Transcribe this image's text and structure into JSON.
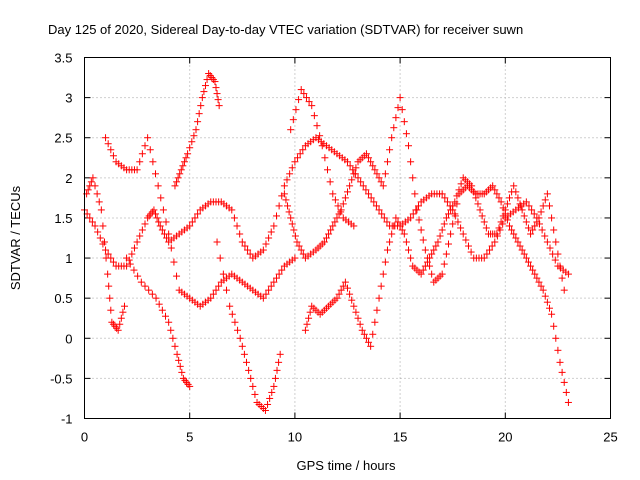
{
  "chart_data": {
    "type": "scatter",
    "title": "Day 125 of 2020, Sidereal Day-to-day VTEC variation (SDTVAR) for receiver suwn",
    "xlabel": "GPS time / hours",
    "ylabel": "SDTVAR / TECUs",
    "xlim": [
      0,
      25
    ],
    "ylim": [
      -1,
      3.5
    ],
    "x_ticks": [
      "0",
      "5",
      "10",
      "15",
      "20",
      "25"
    ],
    "y_ticks": [
      "-1",
      "-0.5",
      "0",
      "0.5",
      "1",
      "1.5",
      "2",
      "2.5",
      "3",
      "3.5"
    ],
    "grid": true,
    "marker": "+",
    "color": "#ff0000",
    "series": [
      {
        "name": "trace-1",
        "x": [
          0.0,
          0.5,
          1.0,
          1.5,
          2.0,
          2.5,
          3.0,
          3.3,
          3.6,
          4.0,
          4.5,
          5.0,
          5.5,
          6.0,
          6.5,
          7.0,
          7.5,
          8.0,
          8.5,
          9.0,
          9.5,
          10.0,
          10.5,
          11.0,
          11.5,
          12.0,
          12.5,
          13.0,
          13.5,
          14.0,
          14.5,
          15.0,
          15.5,
          16.0,
          16.5,
          17.0,
          17.5,
          18.0,
          18.5,
          19.0,
          19.5,
          20.0,
          20.5,
          21.0,
          21.5,
          22.0,
          22.5,
          23.0
        ],
        "y": [
          1.6,
          1.4,
          1.1,
          0.9,
          0.9,
          1.2,
          1.5,
          1.6,
          1.4,
          1.2,
          1.3,
          1.4,
          1.6,
          1.7,
          1.7,
          1.6,
          1.2,
          1.0,
          1.1,
          1.4,
          1.9,
          2.2,
          2.4,
          2.5,
          2.4,
          2.3,
          2.2,
          2.0,
          1.8,
          1.6,
          1.4,
          1.4,
          1.5,
          1.7,
          1.8,
          1.8,
          1.6,
          1.3,
          1.0,
          1.0,
          1.2,
          1.5,
          1.6,
          1.7,
          1.5,
          1.2,
          0.9,
          0.8
        ]
      },
      {
        "name": "trace-2",
        "x": [
          0.1,
          0.4,
          0.8,
          1.1,
          1.3,
          1.6,
          1.9
        ],
        "y": [
          1.8,
          2.0,
          1.6,
          0.8,
          0.2,
          0.1,
          0.4
        ]
      },
      {
        "name": "trace-3",
        "x": [
          1.0,
          1.5,
          2.0,
          2.5,
          3.0,
          3.5,
          4.0,
          4.5,
          5.0,
          5.5,
          6.0,
          6.5,
          7.0,
          7.5,
          8.0,
          8.5,
          9.0,
          9.5,
          10.0
        ],
        "y": [
          2.5,
          2.2,
          2.1,
          2.1,
          2.5,
          1.9,
          1.3,
          0.6,
          0.5,
          0.4,
          0.5,
          0.7,
          0.8,
          0.7,
          0.6,
          0.5,
          0.7,
          0.9,
          1.0
        ]
      },
      {
        "name": "trace-4",
        "x": [
          4.3,
          4.6,
          4.9,
          5.3,
          5.6,
          5.9,
          6.2,
          6.4
        ],
        "y": [
          1.9,
          2.1,
          2.3,
          2.6,
          3.0,
          3.3,
          3.2,
          2.9
        ]
      },
      {
        "name": "trace-5",
        "x": [
          2.0,
          2.7,
          3.4,
          4.0,
          4.4,
          4.7,
          5.0
        ],
        "y": [
          1.0,
          0.7,
          0.5,
          0.2,
          -0.2,
          -0.5,
          -0.6
        ]
      },
      {
        "name": "trace-6",
        "x": [
          6.3,
          6.9,
          7.4,
          7.8,
          8.2,
          8.6,
          9.0,
          9.3
        ],
        "y": [
          1.2,
          0.4,
          0.0,
          -0.4,
          -0.8,
          -0.9,
          -0.6,
          -0.2
        ]
      },
      {
        "name": "trace-7",
        "x": [
          9.5,
          9.8,
          10.1,
          10.5,
          11.0,
          11.4,
          11.8,
          12.2,
          12.6,
          13.0,
          13.4,
          13.8,
          14.2,
          14.6,
          15.0,
          15.4,
          15.8,
          16.2,
          16.6,
          17.0,
          17.4,
          17.8,
          18.2,
          18.6,
          19.0,
          19.4,
          19.8,
          20.2,
          20.6,
          21.0,
          21.4,
          21.8,
          22.2,
          22.6,
          23.0
        ],
        "y": [
          1.8,
          1.5,
          1.2,
          1.0,
          1.1,
          1.2,
          1.4,
          1.6,
          1.9,
          2.2,
          2.3,
          2.1,
          1.9,
          2.5,
          3.0,
          2.4,
          1.6,
          1.1,
          0.7,
          0.8,
          1.3,
          1.8,
          1.9,
          1.8,
          1.8,
          1.9,
          1.7,
          1.4,
          1.2,
          1.0,
          0.8,
          0.6,
          0.3,
          -0.3,
          -0.8
        ]
      },
      {
        "name": "trace-8",
        "x": [
          10.5,
          10.8,
          11.2,
          11.6,
          12.0,
          12.4,
          12.8,
          13.2,
          13.6,
          14.0,
          14.4,
          14.8,
          15.2,
          15.6,
          16.0,
          16.4,
          16.8,
          17.2,
          17.6,
          18.0,
          18.4,
          18.8,
          19.2,
          19.6,
          20.0,
          20.4,
          20.8,
          21.2,
          21.6,
          22.0,
          22.4,
          22.8
        ],
        "y": [
          0.1,
          0.4,
          0.3,
          0.4,
          0.5,
          0.7,
          0.4,
          0.1,
          -0.1,
          0.5,
          1.1,
          1.5,
          1.3,
          0.9,
          0.8,
          1.0,
          1.2,
          1.5,
          1.7,
          2.0,
          1.9,
          1.6,
          1.3,
          1.3,
          1.6,
          1.9,
          1.6,
          1.3,
          1.5,
          1.8,
          1.2,
          0.6
        ]
      },
      {
        "name": "trace-9",
        "x": [
          9.8,
          10.3,
          10.8,
          11.3,
          11.8,
          12.3,
          12.8
        ],
        "y": [
          2.6,
          3.1,
          2.9,
          2.4,
          1.8,
          1.5,
          1.4
        ]
      }
    ]
  }
}
